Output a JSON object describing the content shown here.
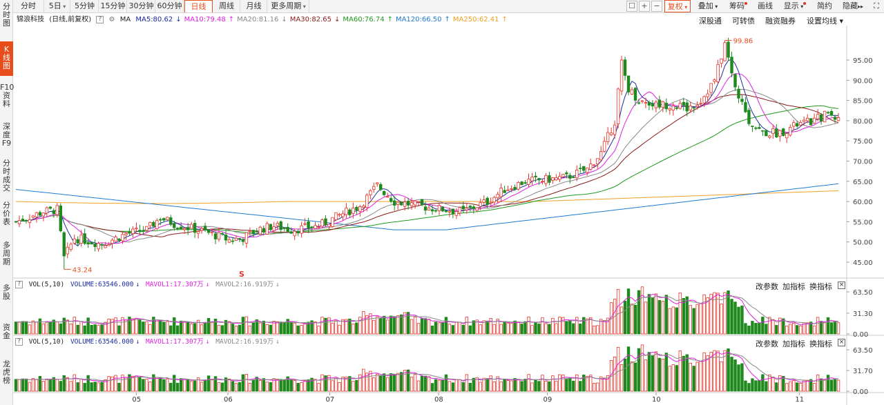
{
  "sidebar": {
    "items": [
      {
        "label": "分\n时\n图",
        "active": false
      },
      {
        "label": "K\n线\n图",
        "active": true
      },
      {
        "label": "F10\n资\n料",
        "active": false
      },
      {
        "label": "深\n度\nF9",
        "active": false
      },
      {
        "label": "分\n时\n成\n交",
        "active": false
      },
      {
        "label": "分\n价\n表",
        "active": false
      },
      {
        "label": "多\n周\n期",
        "active": false
      },
      {
        "label": "多\n股",
        "active": false
      },
      {
        "label": "资\n金",
        "active": false
      },
      {
        "label": "龙\n虎\n榜",
        "active": false
      }
    ]
  },
  "toolbar": {
    "periods": [
      {
        "label": "分时",
        "dropdown": false
      },
      {
        "label": "5日",
        "dropdown": true
      },
      {
        "label": "5分钟",
        "dropdown": false
      },
      {
        "label": "15分钟",
        "dropdown": false
      },
      {
        "label": "30分钟",
        "dropdown": false
      },
      {
        "label": "60分钟",
        "dropdown": false
      },
      {
        "label": "日线",
        "dropdown": false,
        "active": true
      },
      {
        "label": "周线",
        "dropdown": false
      },
      {
        "label": "月线",
        "dropdown": false
      },
      {
        "label": "更多周期",
        "dropdown": true
      }
    ],
    "fuquan": "复权",
    "diejia": "叠加",
    "chouma": "筹码",
    "huaxian": "画线",
    "xianshi": "显示",
    "jianyue": "简约",
    "yincang": "隐藏",
    "caret": "▾",
    "dbl_arrow": "▸▸",
    "icons": {
      "lock": "lock-icon",
      "plus": "+",
      "minus": "−",
      "fullscreen": "⛶"
    }
  },
  "info": {
    "stock": "锦浪科技",
    "mode": "(日线,前复权)",
    "help": "?",
    "ma_label": "MA",
    "ma": [
      {
        "label": "MA5:80.62",
        "arrow": "↓",
        "color": "#1a2ba0"
      },
      {
        "label": "MA10:79.48",
        "arrow": "↑",
        "color": "#e020e0"
      },
      {
        "label": "MA20:81.16",
        "arrow": "↓",
        "color": "#888888"
      },
      {
        "label": "MA30:82.65",
        "arrow": "↓",
        "color": "#8b1a1a"
      },
      {
        "label": "MA60:76.74",
        "arrow": "↑",
        "color": "#1e9a1e"
      },
      {
        "label": "MA120:66.50",
        "arrow": "↑",
        "color": "#1e7ad2"
      },
      {
        "label": "MA250:62.41",
        "arrow": "↑",
        "color": "#f0a020"
      }
    ]
  },
  "right_links": [
    "深股通",
    "可转债",
    "融资融券",
    "设置均线"
  ],
  "price_axis": [
    "95.00",
    "90.00",
    "85.00",
    "80.00",
    "75.00",
    "70.00",
    "65.00",
    "60.00",
    "55.00",
    "50.00",
    "45.00"
  ],
  "annotations": {
    "high": "99.86",
    "low": "43.24",
    "marker": "S"
  },
  "volume_panel_1": {
    "help": "?",
    "title": "VOL(5,10)",
    "volume": "VOLUME:63546.000",
    "vol_arrow": "↓",
    "mavol1": "MAVOL1:17.307万",
    "mavol1_arrow": "↓",
    "mavol2": "MAVOL2:16.919万",
    "mavol2_arrow": "↓",
    "ticks": [
      "63.50",
      "31.30",
      "0.00"
    ],
    "btns": [
      "改参数",
      "加指标",
      "换指标"
    ],
    "close": "×"
  },
  "volume_panel_2": {
    "help": "?",
    "title": "VOL(5,10)",
    "volume": "VOLUME:63546.000",
    "vol_arrow": "↓",
    "mavol1": "MAVOL1:17.307万",
    "mavol1_arrow": "↓",
    "mavol2": "MAVOL2:16.919万",
    "mavol2_arrow": "↓",
    "ticks": [
      "63.50",
      "31.70",
      "0.00"
    ],
    "btns": [
      "改参数",
      "加指标",
      "换指标"
    ],
    "close": "×"
  },
  "months": [
    "05",
    "06",
    "07",
    "08",
    "09",
    "10",
    "11"
  ],
  "colors": {
    "up": "#e5332a",
    "down": "#1e8a1e",
    "accent": "#e84c1a"
  }
}
